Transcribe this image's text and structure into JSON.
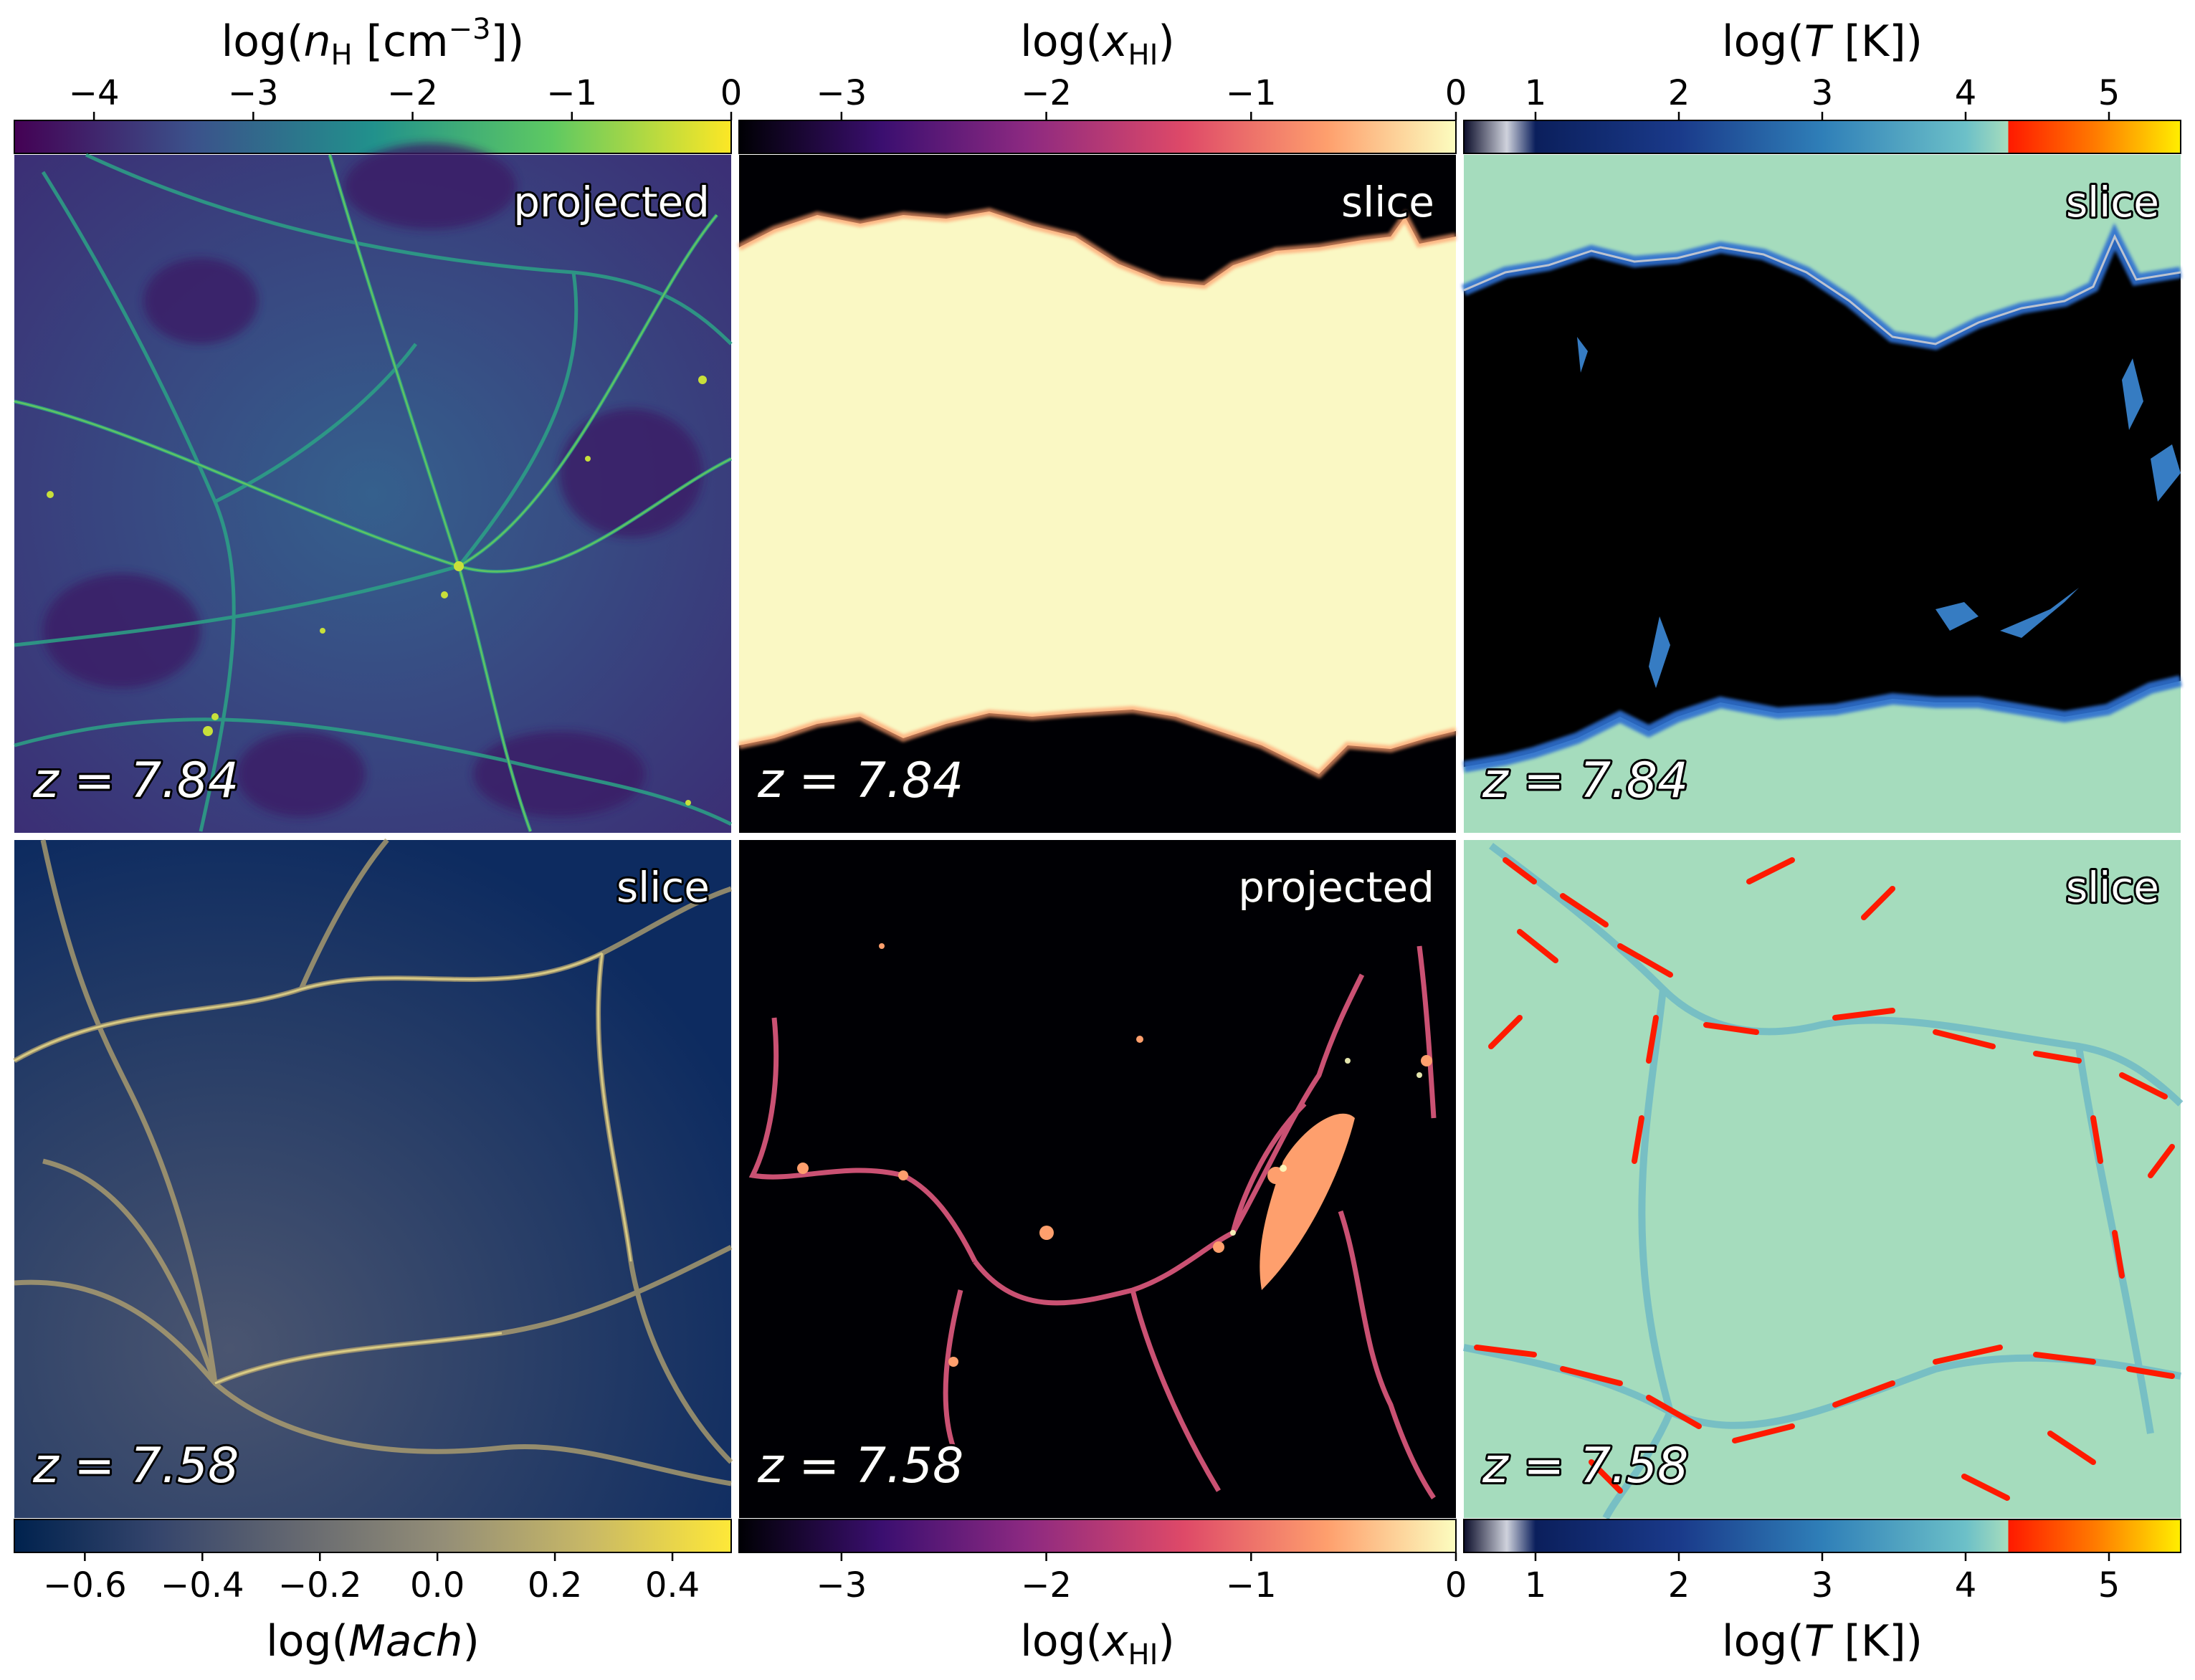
{
  "chart_data": [
    {
      "type": "heatmap",
      "id": "nh",
      "colormap": "viridis",
      "colorbar_label": "log(n_H [cm^-3])",
      "colorbar_label_parts": {
        "pre": "log(",
        "sym": "n",
        "sub": "H",
        "post": " [cm",
        "sup": "−3",
        "end": "])"
      },
      "range": [
        -4.5,
        0
      ],
      "ticks": [
        -4,
        -3,
        -2,
        -1,
        0
      ],
      "tick_labels": [
        "−4",
        "−3",
        "−2",
        "−1",
        "0"
      ],
      "badge": "projected",
      "redshift": "z = 7.84"
    },
    {
      "type": "heatmap",
      "id": "xhi_top",
      "colormap": "magma",
      "colorbar_label": "log(x_HI)",
      "range": [
        -3.5,
        0
      ],
      "ticks": [
        -3,
        -2,
        -1,
        0
      ],
      "tick_labels": [
        "−3",
        "−2",
        "−1",
        "0"
      ],
      "badge": "slice",
      "redshift": "z = 7.84"
    },
    {
      "type": "heatmap",
      "id": "temp_top",
      "colormap": "custom-temperature",
      "colorbar_label": "log(T [K])",
      "range": [
        0.5,
        5.5
      ],
      "ticks": [
        1,
        2,
        3,
        4,
        5
      ],
      "tick_labels": [
        "1",
        "2",
        "3",
        "4",
        "5"
      ],
      "badge": "slice",
      "redshift": "z = 7.84"
    },
    {
      "type": "heatmap",
      "id": "mach",
      "colormap": "cividis",
      "colorbar_label": "log(Mach)",
      "range": [
        -0.72,
        0.5
      ],
      "ticks": [
        -0.6,
        -0.4,
        -0.2,
        0.0,
        0.2,
        0.4
      ],
      "tick_labels": [
        "−0.6",
        "−0.4",
        "−0.2",
        "0.0",
        "0.2",
        "0.4"
      ],
      "badge": "slice",
      "redshift": "z = 7.58"
    },
    {
      "type": "heatmap",
      "id": "xhi_bottom",
      "colormap": "magma",
      "colorbar_label": "log(x_HI)",
      "range": [
        -3.5,
        0
      ],
      "ticks": [
        -3,
        -2,
        -1,
        0
      ],
      "tick_labels": [
        "−3",
        "−2",
        "−1",
        "0"
      ],
      "badge": "projected",
      "redshift": "z = 7.58"
    },
    {
      "type": "heatmap",
      "id": "temp_bottom",
      "colormap": "custom-temperature",
      "colorbar_label": "log(T [K])",
      "range": [
        0.5,
        5.5
      ],
      "ticks": [
        1,
        2,
        3,
        4,
        5
      ],
      "tick_labels": [
        "1",
        "2",
        "3",
        "4",
        "5"
      ],
      "badge": "slice",
      "redshift": "z = 7.58"
    }
  ],
  "colors": {
    "viridis": [
      "#440154",
      "#3b528b",
      "#21918c",
      "#5ec962",
      "#fde725"
    ],
    "magma": [
      "#000004",
      "#3b0f70",
      "#8c2981",
      "#de4968",
      "#fe9f6d",
      "#fcfdbf"
    ],
    "cividis": [
      "#00224e",
      "#35456c",
      "#666970",
      "#948e77",
      "#c8b866",
      "#fee838"
    ],
    "temperature": [
      "#0b0d2a",
      "#1a2c75",
      "#2f6fb5",
      "#4fa6c9",
      "#9ad7c4",
      "#ff1a00",
      "#ff8000",
      "#ffee00"
    ],
    "ionized_green": "#a5dcbd",
    "neutral_black": "#000000",
    "neutral_cream": "#faf8c4"
  }
}
